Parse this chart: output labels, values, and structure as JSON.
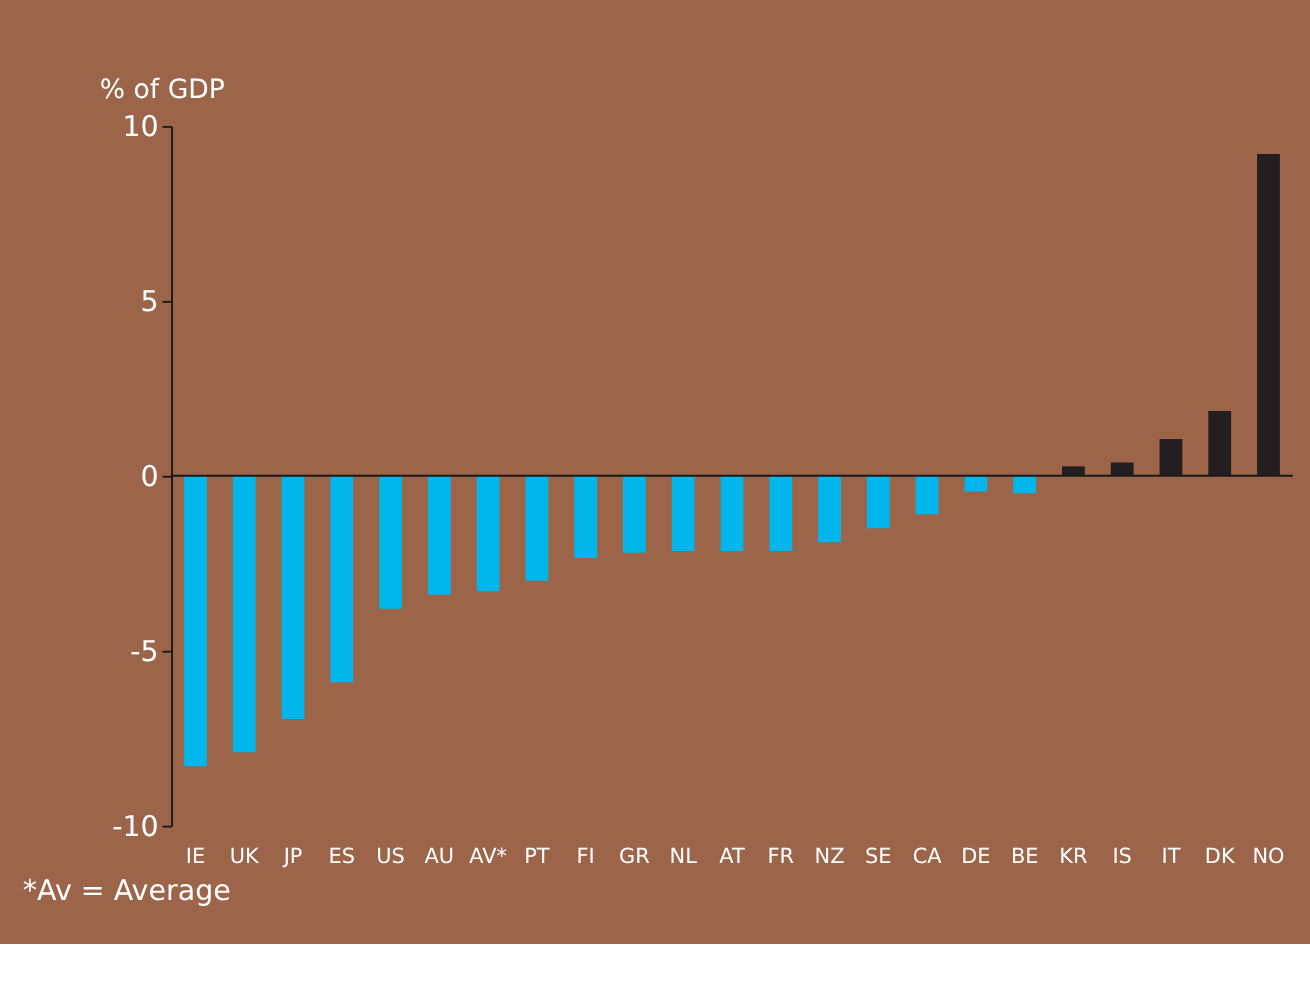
{
  "chart_data": {
    "type": "bar",
    "ylabel": "% of GDP",
    "categories": [
      "IE",
      "UK",
      "JP",
      "ES",
      "US",
      "AU",
      "AV*",
      "PT",
      "FI",
      "GR",
      "NL",
      "AT",
      "FR",
      "NZ",
      "SE",
      "CA",
      "DE",
      "BE",
      "KR",
      "IS",
      "IT",
      "DK",
      "NO"
    ],
    "values": [
      -8.3,
      -7.9,
      -6.95,
      -5.9,
      -3.8,
      -3.4,
      -3.3,
      -3.0,
      -2.35,
      -2.2,
      -2.15,
      -2.15,
      -2.15,
      -1.9,
      -1.5,
      -1.1,
      -0.45,
      -0.5,
      0.27,
      0.38,
      1.05,
      1.85,
      9.2
    ],
    "colors": [
      "#00b6ea",
      "#00b6ea",
      "#00b6ea",
      "#00b6ea",
      "#00b6ea",
      "#00b6ea",
      "#00b6ea",
      "#00b6ea",
      "#00b6ea",
      "#00b6ea",
      "#00b6ea",
      "#00b6ea",
      "#00b6ea",
      "#00b6ea",
      "#00b6ea",
      "#00b6ea",
      "#00b6ea",
      "#00b6ea",
      "#231f20",
      "#231f20",
      "#231f20",
      "#231f20",
      "#231f20"
    ],
    "ylim": [
      -10,
      10
    ],
    "yticks": [
      -10,
      -5,
      0,
      5,
      10
    ],
    "annotations": [
      "*Av = Average"
    ]
  }
}
